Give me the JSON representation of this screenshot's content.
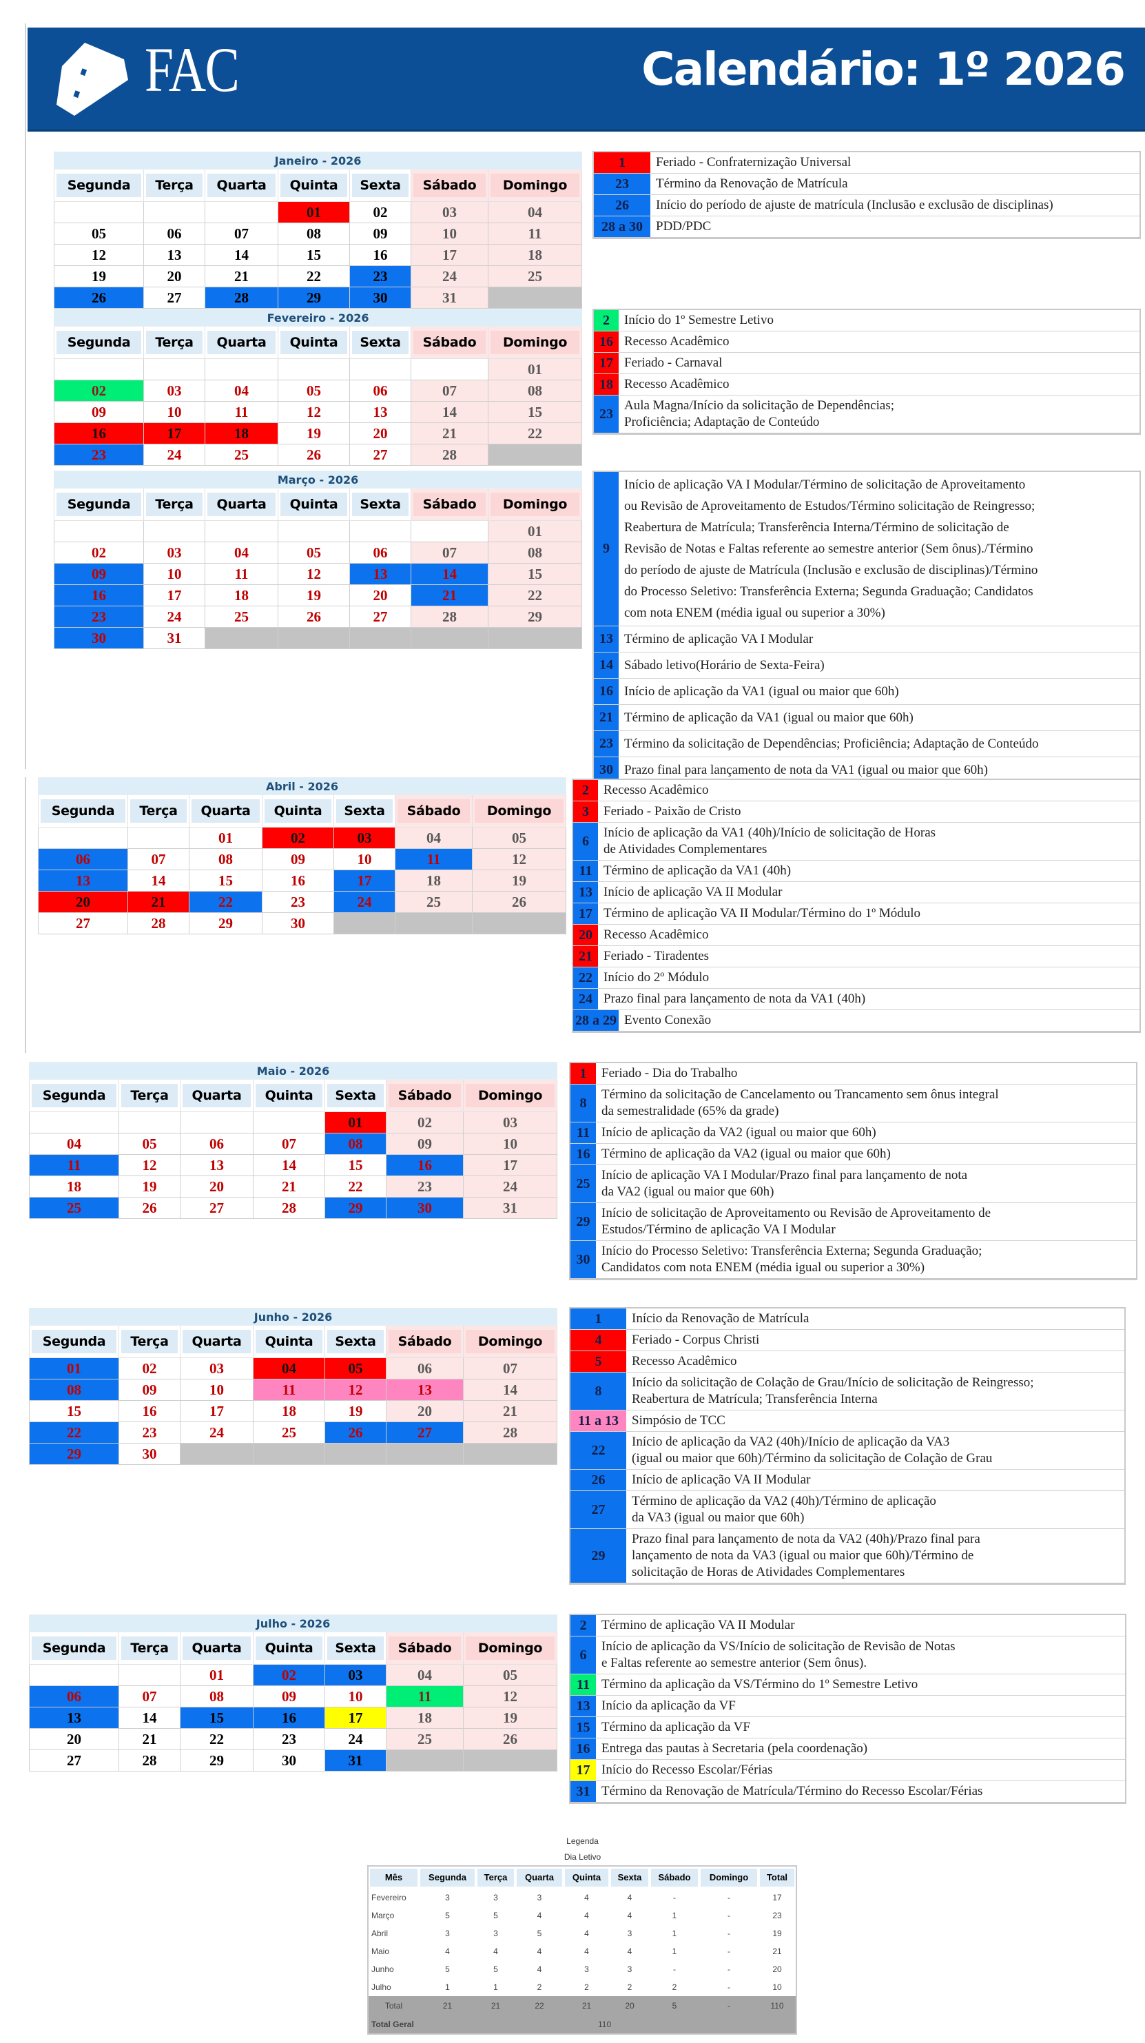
{
  "header": {
    "logo_text": "FAC",
    "title": "Calendário: 1º 2026"
  },
  "weekdays": [
    "Segunda",
    "Terça",
    "Quarta",
    "Quinta",
    "Sexta",
    "Sábado",
    "Domingo"
  ],
  "colors": {
    "blue": "#0c72ee",
    "red": "#ff0000",
    "green": "#00ee76",
    "yellow": "#ffff00",
    "pink": "#ff85c1",
    "weekday_red": "#c00000",
    "weekend_text": "#595959",
    "header_bg": "#0d4f96"
  },
  "months": [
    {
      "title": "Janeiro - 2026",
      "text": "black",
      "weeks": [
        [
          "",
          "",
          "",
          "01",
          "02",
          "03",
          "04"
        ],
        [
          "05",
          "06",
          "07",
          "08",
          "09",
          "10",
          "11"
        ],
        [
          "12",
          "13",
          "14",
          "15",
          "16",
          "17",
          "18"
        ],
        [
          "19",
          "20",
          "21",
          "22",
          "23",
          "24",
          "25"
        ],
        [
          "26",
          "27",
          "28",
          "29",
          "30",
          "31",
          ""
        ]
      ],
      "highlights": {
        "01": "red",
        "23": "blue",
        "26": "blue",
        "28": "blue",
        "29": "blue",
        "30": "blue"
      },
      "events": [
        {
          "num": "1",
          "color": "red",
          "text": "Feriado - Confraternização Universal"
        },
        {
          "num": "23",
          "color": "blue",
          "text": "Término da Renovação de Matrícula"
        },
        {
          "num": "26",
          "color": "blue",
          "text": "Início do período de ajuste de matrícula (Inclusão e exclusão de disciplinas)"
        },
        {
          "num": "28 a 30",
          "color": "blue",
          "text": "PDD/PDC"
        }
      ]
    },
    {
      "title": "Fevereiro - 2026",
      "text": "red",
      "weeks": [
        [
          "",
          "",
          "",
          "",
          "",
          "",
          "01"
        ],
        [
          "02",
          "03",
          "04",
          "05",
          "06",
          "07",
          "08"
        ],
        [
          "09",
          "10",
          "11",
          "12",
          "13",
          "14",
          "15"
        ],
        [
          "16",
          "17",
          "18",
          "19",
          "20",
          "21",
          "22"
        ],
        [
          "23",
          "24",
          "25",
          "26",
          "27",
          "28",
          ""
        ]
      ],
      "highlights": {
        "02": "green",
        "16": "red",
        "17": "red",
        "18": "red",
        "23": "blue"
      },
      "events": [
        {
          "num": "2",
          "color": "green",
          "text": "Início do 1º Semestre Letivo"
        },
        {
          "num": "16",
          "color": "red",
          "text": "Recesso Acadêmico"
        },
        {
          "num": "17",
          "color": "red",
          "text": "Feriado - Carnaval"
        },
        {
          "num": "18",
          "color": "red",
          "text": "Recesso Acadêmico"
        },
        {
          "num": "23",
          "color": "blue",
          "text": "Aula Magna/Início da solicitação de Dependências;\nProficiência; Adaptação de Conteúdo"
        }
      ]
    },
    {
      "title": "Março - 2026",
      "text": "red",
      "weeks": [
        [
          "",
          "",
          "",
          "",
          "",
          "",
          "01"
        ],
        [
          "02",
          "03",
          "04",
          "05",
          "06",
          "07",
          "08"
        ],
        [
          "09",
          "10",
          "11",
          "12",
          "13",
          "14",
          "15"
        ],
        [
          "16",
          "17",
          "18",
          "19",
          "20",
          "21",
          "22"
        ],
        [
          "23",
          "24",
          "25",
          "26",
          "27",
          "28",
          "29"
        ],
        [
          "30",
          "31",
          "",
          "",
          "",
          "",
          ""
        ]
      ],
      "highlights": {
        "09": "blue",
        "13": "blue",
        "14": "blue",
        "16": "blue",
        "21": "blue",
        "23": "blue",
        "30": "blue"
      },
      "events": [
        {
          "num": "9",
          "color": "blue",
          "text": "Início de aplicação VA I Modular/Término de solicitação de Aproveitamento\nou Revisão de Aproveitamento de Estudos/Término solicitação de Reingresso;\nReabertura de Matrícula; Transferência Interna/Término de solicitação de\nRevisão de Notas e Faltas referente ao semestre anterior (Sem ônus)./Término\ndo período de ajuste de Matrícula (Inclusão e exclusão de disciplinas)/Término\ndo Processo Seletivo: Transferência Externa; Segunda Graduação; Candidatos\ncom nota ENEM (média igual ou superior a 30%)"
        },
        {
          "num": "13",
          "color": "blue",
          "text": "Término de aplicação VA I Modular"
        },
        {
          "num": "14",
          "color": "blue",
          "text": "Sábado letivo(Horário de Sexta-Feira)"
        },
        {
          "num": "16",
          "color": "blue",
          "text": "Início de aplicação da VA1 (igual ou maior que 60h)"
        },
        {
          "num": "21",
          "color": "blue",
          "text": "Término de aplicação da VA1 (igual ou maior que 60h)"
        },
        {
          "num": "23",
          "color": "blue",
          "text": "Término da solicitação de Dependências; Proficiência; Adaptação de Conteúdo"
        },
        {
          "num": "30",
          "color": "blue",
          "text": "Prazo final para lançamento de nota da VA1 (igual ou maior que 60h)"
        }
      ]
    },
    {
      "title": "Abril - 2026",
      "text": "red",
      "weeks": [
        [
          "",
          "",
          "01",
          "02",
          "03",
          "04",
          "05"
        ],
        [
          "06",
          "07",
          "08",
          "09",
          "10",
          "11",
          "12"
        ],
        [
          "13",
          "14",
          "15",
          "16",
          "17",
          "18",
          "19"
        ],
        [
          "20",
          "21",
          "22",
          "23",
          "24",
          "25",
          "26"
        ],
        [
          "27",
          "28",
          "29",
          "30",
          "",
          "",
          ""
        ]
      ],
      "highlights": {
        "02": "red",
        "03": "red",
        "06": "blue",
        "11": "blue",
        "13": "blue",
        "17": "blue",
        "20": "red",
        "21": "red",
        "22": "blue",
        "24": "blue"
      },
      "events": [
        {
          "num": "2",
          "color": "red",
          "text": "Recesso Acadêmico"
        },
        {
          "num": "3",
          "color": "red",
          "text": "Feriado - Paixão de Cristo"
        },
        {
          "num": "6",
          "color": "blue",
          "text": "Início de aplicação da VA1 (40h)/Início de solicitação de Horas\nde Atividades Complementares"
        },
        {
          "num": "11",
          "color": "blue",
          "text": "Término de aplicação da VA1 (40h)"
        },
        {
          "num": "13",
          "color": "blue",
          "text": "Início de aplicação VA II Modular"
        },
        {
          "num": "17",
          "color": "blue",
          "text": "Término de aplicação VA II Modular/Término do 1º Módulo"
        },
        {
          "num": "20",
          "color": "red",
          "text": "Recesso Acadêmico"
        },
        {
          "num": "21",
          "color": "red",
          "text": "Feriado - Tiradentes"
        },
        {
          "num": "22",
          "color": "blue",
          "text": "Início do 2º Módulo"
        },
        {
          "num": "24",
          "color": "blue",
          "text": "Prazo final para lançamento de nota da VA1 (40h)"
        },
        {
          "num": "28 a 29",
          "color": "blue",
          "text": "Evento Conexão"
        }
      ]
    },
    {
      "title": "Maio - 2026",
      "text": "red",
      "weeks": [
        [
          "",
          "",
          "",
          "",
          "01",
          "02",
          "03"
        ],
        [
          "04",
          "05",
          "06",
          "07",
          "08",
          "09",
          "10"
        ],
        [
          "11",
          "12",
          "13",
          "14",
          "15",
          "16",
          "17"
        ],
        [
          "18",
          "19",
          "20",
          "21",
          "22",
          "23",
          "24"
        ],
        [
          "25",
          "26",
          "27",
          "28",
          "29",
          "30",
          "31"
        ]
      ],
      "highlights": {
        "01": "red",
        "08": "blue",
        "11": "blue",
        "16": "blue",
        "25": "blue",
        "29": "blue",
        "30": "blue"
      },
      "events": [
        {
          "num": "1",
          "color": "red",
          "text": "Feriado - Dia do Trabalho"
        },
        {
          "num": "8",
          "color": "blue",
          "text": "Término da solicitação de Cancelamento ou Trancamento sem ônus integral\nda semestralidade (65% da grade)"
        },
        {
          "num": "11",
          "color": "blue",
          "text": "Início de aplicação da VA2 (igual ou maior que 60h)"
        },
        {
          "num": "16",
          "color": "blue",
          "text": "Término de aplicação da VA2 (igual ou maior que 60h)"
        },
        {
          "num": "25",
          "color": "blue",
          "text": "Início de aplicação VA I Modular/Prazo final para lançamento de nota\nda VA2 (igual ou maior que 60h)"
        },
        {
          "num": "29",
          "color": "blue",
          "text": "Início de solicitação de Aproveitamento ou Revisão de Aproveitamento de\nEstudos/Término de aplicação VA I Modular"
        },
        {
          "num": "30",
          "color": "blue",
          "text": "Início do Processo Seletivo: Transferência Externa; Segunda Graduação;\nCandidatos com nota ENEM (média igual ou superior a 30%)"
        }
      ]
    },
    {
      "title": "Junho - 2026",
      "text": "red",
      "weeks": [
        [
          "01",
          "02",
          "03",
          "04",
          "05",
          "06",
          "07"
        ],
        [
          "08",
          "09",
          "10",
          "11",
          "12",
          "13",
          "14"
        ],
        [
          "15",
          "16",
          "17",
          "18",
          "19",
          "20",
          "21"
        ],
        [
          "22",
          "23",
          "24",
          "25",
          "26",
          "27",
          "28"
        ],
        [
          "29",
          "30",
          "",
          "",
          "",
          "",
          ""
        ]
      ],
      "highlights": {
        "01": "blue",
        "04": "red",
        "05": "red",
        "08": "blue",
        "11": "pink",
        "12": "pink",
        "13": "pink",
        "22": "blue",
        "26": "blue",
        "27": "blue",
        "29": "blue"
      },
      "events": [
        {
          "num": "1",
          "color": "blue",
          "text": "Início da Renovação de Matrícula"
        },
        {
          "num": "4",
          "color": "red",
          "text": "Feriado - Corpus Christi"
        },
        {
          "num": "5",
          "color": "red",
          "text": "Recesso Acadêmico"
        },
        {
          "num": "8",
          "color": "blue",
          "text": "Início da solicitação de Colação de Grau/Início de solicitação de Reingresso;\nReabertura de Matrícula; Transferência Interna"
        },
        {
          "num": "11 a 13",
          "color": "pink",
          "text": "Simpósio de TCC"
        },
        {
          "num": "22",
          "color": "blue",
          "text": "Início de aplicação da VA2 (40h)/Início de aplicação da VA3\n(igual ou maior que 60h)/Término da solicitação de Colação de Grau"
        },
        {
          "num": "26",
          "color": "blue",
          "text": "Início de aplicação VA II Modular"
        },
        {
          "num": "27",
          "color": "blue",
          "text": "Término de aplicação da VA2 (40h)/Término de aplicação\nda VA3 (igual ou maior que 60h)"
        },
        {
          "num": "29",
          "color": "blue",
          "text": "Prazo final para lançamento de nota da VA2 (40h)/Prazo final para\nlançamento de nota da VA3 (igual ou maior que 60h)/Término de\nsolicitação de Horas de Atividades Complementares"
        }
      ]
    },
    {
      "title": "Julho - 2026",
      "text": "red",
      "black_days": [
        "03",
        "13",
        "14",
        "15",
        "16",
        "17",
        "20",
        "21",
        "22",
        "23",
        "24",
        "27",
        "28",
        "29",
        "30",
        "31"
      ],
      "weeks": [
        [
          "",
          "",
          "01",
          "02",
          "03",
          "04",
          "05"
        ],
        [
          "06",
          "07",
          "08",
          "09",
          "10",
          "11",
          "12"
        ],
        [
          "13",
          "14",
          "15",
          "16",
          "17",
          "18",
          "19"
        ],
        [
          "20",
          "21",
          "22",
          "23",
          "24",
          "25",
          "26"
        ],
        [
          "27",
          "28",
          "29",
          "30",
          "31",
          "",
          ""
        ]
      ],
      "highlights": {
        "02": "blue",
        "03": "blue",
        "06": "blue",
        "11": "green",
        "13": "blue",
        "15": "blue",
        "16": "blue",
        "17": "yellow",
        "31": "blue"
      },
      "events": [
        {
          "num": "2",
          "color": "blue",
          "text": "Término de aplicação VA II Modular"
        },
        {
          "num": "6",
          "color": "blue",
          "text": "Início de aplicação da VS/Início de solicitação de Revisão de Notas\ne Faltas referente ao semestre anterior (Sem ônus)."
        },
        {
          "num": "11",
          "color": "green",
          "text": "Término da aplicação da VS/Término do 1º Semestre Letivo"
        },
        {
          "num": "13",
          "color": "blue",
          "text": "Início da aplicação da VF"
        },
        {
          "num": "15",
          "color": "blue",
          "text": "Término da aplicação da VF"
        },
        {
          "num": "16",
          "color": "blue",
          "text": "Entrega das pautas à Secretaria (pela coordenação)"
        },
        {
          "num": "17",
          "color": "yellow",
          "text": "Início do Recesso Escolar/Férias"
        },
        {
          "num": "31",
          "color": "blue",
          "text": "Término da Renovação de Matrícula/Término do Recesso Escolar/Férias"
        }
      ]
    }
  ],
  "summary": {
    "caption": "Legenda",
    "subcaption": "Dia Letivo",
    "columns": [
      "Mês",
      "Segunda",
      "Terça",
      "Quarta",
      "Quinta",
      "Sexta",
      "Sábado",
      "Domingo",
      "Total"
    ],
    "rows": [
      [
        "Fevereiro",
        "3",
        "3",
        "3",
        "4",
        "4",
        "-",
        "-",
        "17"
      ],
      [
        "Março",
        "5",
        "5",
        "4",
        "4",
        "4",
        "1",
        "-",
        "23"
      ],
      [
        "Abril",
        "3",
        "3",
        "5",
        "4",
        "3",
        "1",
        "-",
        "19"
      ],
      [
        "Maio",
        "4",
        "4",
        "4",
        "4",
        "4",
        "1",
        "-",
        "21"
      ],
      [
        "Junho",
        "5",
        "5",
        "4",
        "3",
        "3",
        "-",
        "-",
        "20"
      ],
      [
        "Julho",
        "1",
        "1",
        "2",
        "2",
        "2",
        "2",
        "-",
        "10"
      ]
    ],
    "total_row": [
      "Total",
      "21",
      "21",
      "22",
      "21",
      "20",
      "5",
      "-",
      "110"
    ],
    "grand_total_label": "Total Geral",
    "grand_total": "110"
  }
}
